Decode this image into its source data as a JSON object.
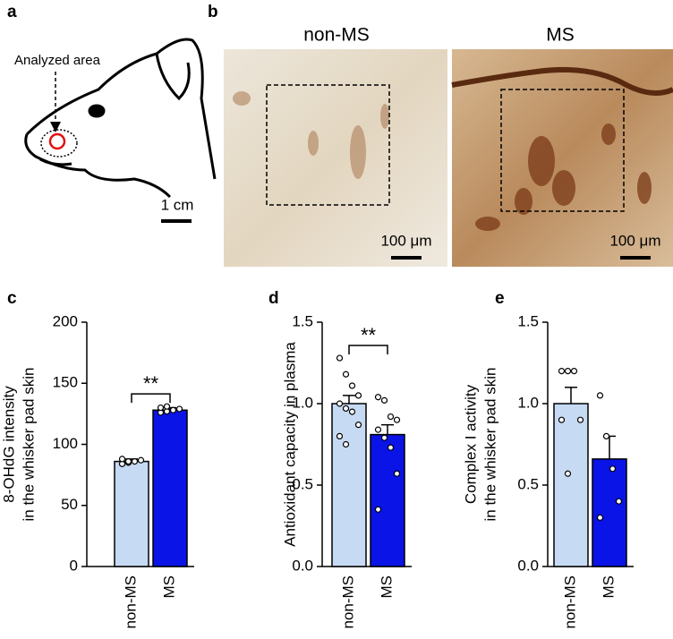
{
  "panels": {
    "a": {
      "label": "a",
      "annotation": "Analyzed area",
      "scale_bar": "1 cm"
    },
    "b": {
      "label": "b",
      "images": [
        {
          "title": "non-MS",
          "scale_bar": "100 μm"
        },
        {
          "title": "MS",
          "scale_bar": "100 μm"
        }
      ]
    }
  },
  "chart_data": [
    {
      "panel_label": "c",
      "type": "bar",
      "ylabel": [
        "8-OHdG intensity",
        "in the whisker pad skin"
      ],
      "categories": [
        "non-MS",
        "MS"
      ],
      "values": [
        86,
        128
      ],
      "errors": [
        2,
        2
      ],
      "colors": [
        "#c6daf4",
        "#0a14e6"
      ],
      "points": [
        [
          84,
          85,
          86,
          87,
          88,
          86
        ],
        [
          126,
          127,
          128,
          129,
          130,
          131
        ]
      ],
      "ylim": [
        0,
        200
      ],
      "yticks": [
        0,
        50,
        100,
        150,
        200
      ],
      "annotation": "**"
    },
    {
      "panel_label": "d",
      "type": "bar",
      "ylabel": [
        "Antioxidant capacity in plasma"
      ],
      "categories": [
        "non-MS",
        "MS"
      ],
      "values": [
        1.0,
        0.81
      ],
      "errors": [
        0.05,
        0.06
      ],
      "colors": [
        "#c6daf4",
        "#0a14e6"
      ],
      "points": [
        [
          1.28,
          1.18,
          1.11,
          1.05,
          1.0,
          0.97,
          0.95,
          0.87,
          0.8,
          0.75
        ],
        [
          1.04,
          1.02,
          0.92,
          0.9,
          0.84,
          0.79,
          0.73,
          0.57,
          0.35
        ]
      ],
      "ylim": [
        0,
        1.5
      ],
      "yticks": [
        {
          "value": 0,
          "label": "0.0"
        },
        0.5,
        {
          "value": 1,
          "label": "1.0"
        },
        1.5
      ],
      "annotation": "**"
    },
    {
      "panel_label": "e",
      "type": "bar",
      "ylabel": [
        "Complex I activity",
        "in the whisker pad skin"
      ],
      "categories": [
        "non-MS",
        "MS"
      ],
      "values": [
        1.0,
        0.66
      ],
      "errors": [
        0.1,
        0.14
      ],
      "colors": [
        "#c6daf4",
        "#0a14e6"
      ],
      "points": [
        [
          1.2,
          1.2,
          1.2,
          0.9,
          0.9,
          0.57
        ],
        [
          1.05,
          0.8,
          0.6,
          0.4,
          0.3
        ]
      ],
      "ylim": [
        0,
        1.5
      ],
      "yticks": [
        {
          "value": 0,
          "label": "0.0"
        },
        0.5,
        {
          "value": 1,
          "label": "1.0"
        },
        1.5
      ]
    }
  ]
}
